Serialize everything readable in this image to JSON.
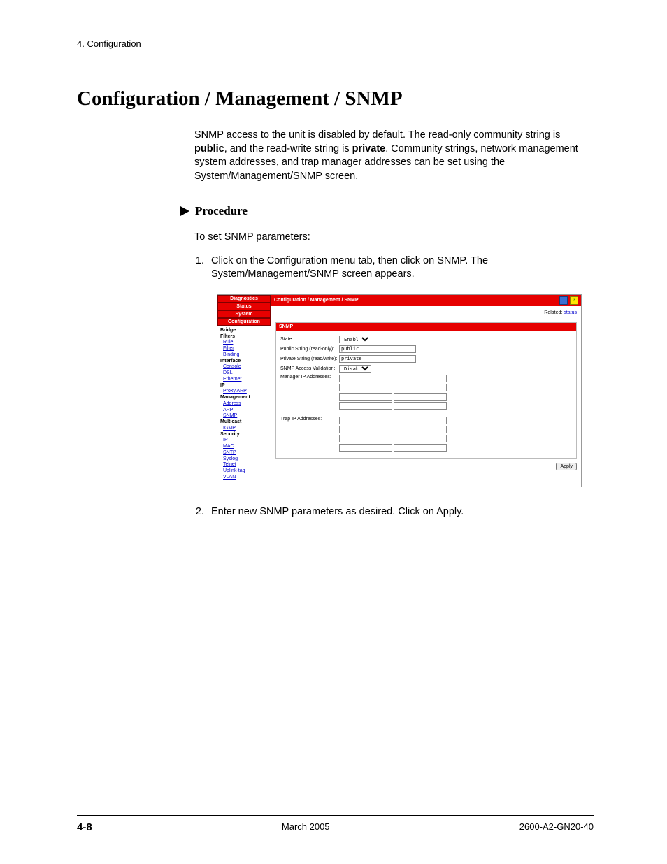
{
  "header": {
    "running": "4. Configuration"
  },
  "title": "Configuration / Management / SNMP",
  "intro": {
    "pre": "SNMP access to the unit is disabled by default. The read-only community string is ",
    "b1": "public",
    "mid": ", and the read-write string is ",
    "b2": "private",
    "post": ". Community strings, network management system addresses, and trap manager addresses can be set using the System/Management/SNMP screen."
  },
  "procedure_label": "Procedure",
  "procedure_intro": "To set SNMP parameters:",
  "steps": [
    "Click on the Configuration menu tab, then click on SNMP. The System/Management/SNMP screen appears.",
    "Enter new SNMP parameters as desired. Click on Apply."
  ],
  "shot": {
    "nav_tabs": [
      "Diagnostics",
      "Status",
      "System",
      "Configuration"
    ],
    "nav_groups": [
      {
        "head": "Bridge",
        "links": []
      },
      {
        "head": "Filters",
        "links": [
          "Rule",
          "Filter",
          "Binding"
        ]
      },
      {
        "head": "Interface",
        "links": [
          "Console",
          "DSL",
          "Ethernet"
        ]
      },
      {
        "head": "IP",
        "links": [
          "Proxy ARP"
        ]
      },
      {
        "head": "Management",
        "links": [
          "Address",
          "ARP",
          "SNMP"
        ]
      },
      {
        "head": "Multicast",
        "links": [
          "IGMP"
        ]
      },
      {
        "head": "Security",
        "links": [
          "IP",
          "MAC",
          "SNTP",
          "Syslog",
          "Telnet",
          "Uplink-tag",
          "VLAN"
        ]
      }
    ],
    "breadcrumb": "Configuration / Management / SNMP",
    "related_label": "Related:",
    "related_link": "status",
    "panel_title": "SNMP",
    "fields": {
      "state_label": "State:",
      "state_value": "Enabled",
      "public_label": "Public String (read-only):",
      "public_value": "public",
      "private_label": "Private String (read/write):",
      "private_value": "private",
      "access_label": "SNMP Access Validation:",
      "access_value": "Disabled",
      "mgr_label": "Manager IP Addresses:",
      "trap_label": "Trap IP Addresses:"
    },
    "apply": "Apply"
  },
  "footer": {
    "page": "4-8",
    "date": "March 2005",
    "doc": "2600-A2-GN20-40"
  }
}
